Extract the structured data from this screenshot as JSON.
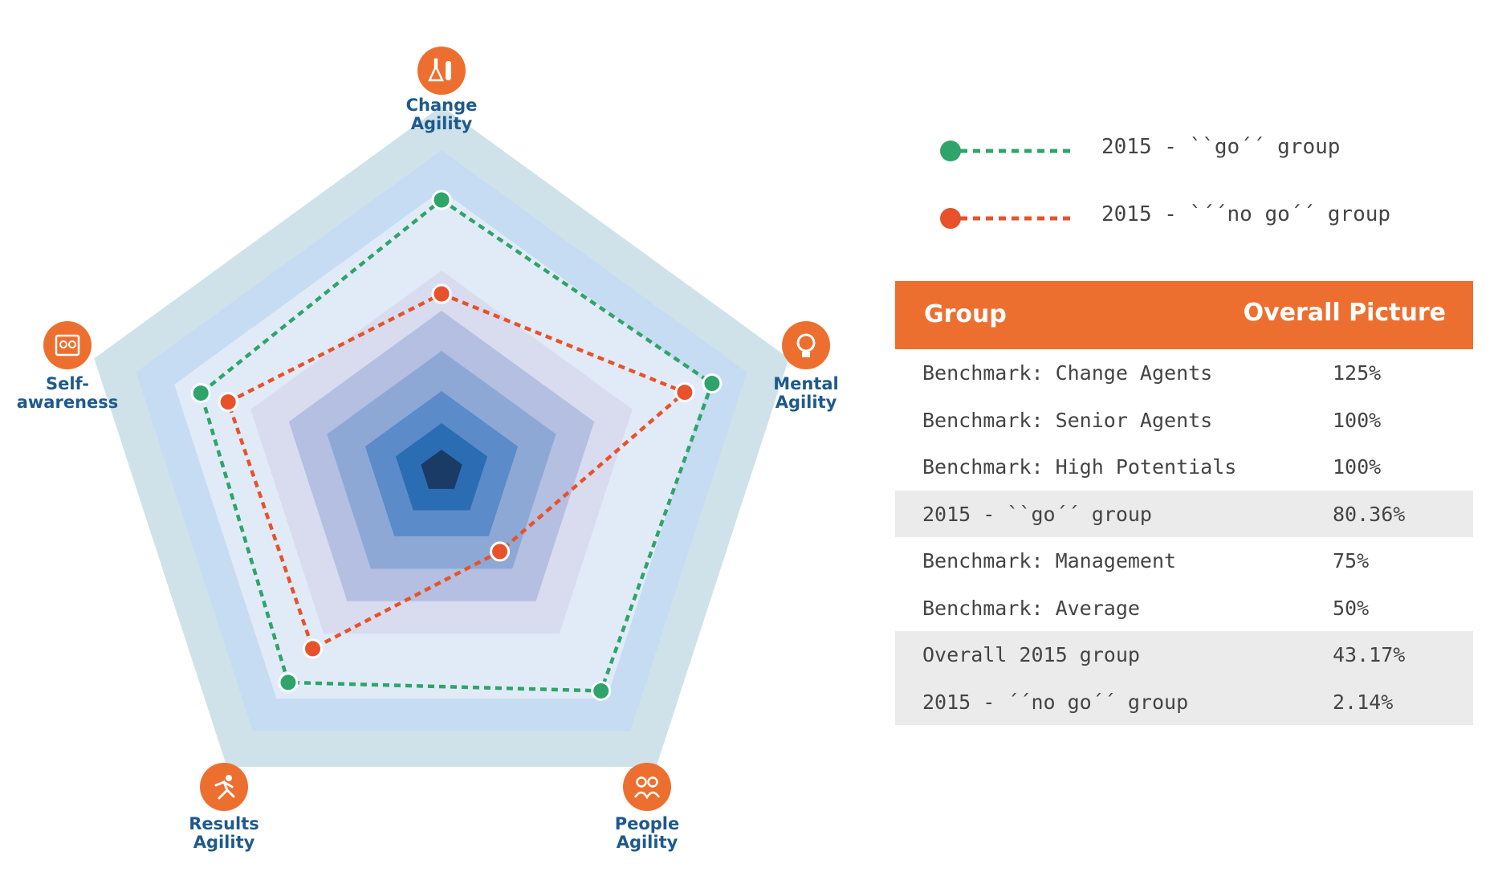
{
  "chart_data": {
    "type": "radar",
    "axes": [
      {
        "label_lines": [
          "Change",
          "Agility"
        ],
        "icon": "flask-icon"
      },
      {
        "label_lines": [
          "Mental",
          "Agility"
        ],
        "icon": "lightbulb-icon"
      },
      {
        "label_lines": [
          "People",
          "Agility"
        ],
        "icon": "people-icon"
      },
      {
        "label_lines": [
          "Results",
          "Agility"
        ],
        "icon": "runner-icon"
      },
      {
        "label_lines": [
          "Self-",
          "awareness"
        ],
        "icon": "mirror-icon"
      }
    ],
    "rings": 7,
    "range": [
      0,
      7
    ],
    "series": [
      {
        "name": "2015 - ``go´´ group",
        "color": "#2fa46a",
        "values": [
          5.2,
          5.45,
          5.2,
          5.0,
          4.85
        ]
      },
      {
        "name": "2015 - `´´no go´´ group",
        "color": "#e8522a",
        "values": [
          3.4,
          4.9,
          1.9,
          4.2,
          4.3
        ]
      }
    ],
    "ring_colors": [
      "#cfe2ea",
      "#c6dcf2",
      "#e1ebf8",
      "#d9dcef",
      "#b4bfe2",
      "#8ea8d6",
      "#5b8bc9",
      "#2b6db3",
      "#1a3b66"
    ]
  },
  "legend": [
    {
      "label": "2015 - ``go´´ group",
      "color": "#2fa46a"
    },
    {
      "label": "2015 - `´´no go´´ group",
      "color": "#e8522a"
    }
  ],
  "table": {
    "header_group": "Group",
    "header_overall": "Overall Picture",
    "rows": [
      {
        "group": "Benchmark: Change Agents",
        "value": "125%",
        "shaded": false
      },
      {
        "group": "Benchmark: Senior Agents",
        "value": "100%",
        "shaded": false
      },
      {
        "group": "Benchmark: High Potentials",
        "value": "100%",
        "shaded": false
      },
      {
        "group": "2015 - ``go´´ group",
        "value": "80.36%",
        "shaded": true
      },
      {
        "group": "Benchmark: Management",
        "value": "75%",
        "shaded": false
      },
      {
        "group": "Benchmark: Average",
        "value": "50%",
        "shaded": false
      },
      {
        "group": "Overall 2015 group",
        "value": "43.17%",
        "shaded": true
      },
      {
        "group": "2015 - ´´no go´´ group",
        "value": "2.14%",
        "shaded": true
      }
    ]
  },
  "colors": {
    "accent_orange": "#ed6f2f",
    "label_blue": "#1e5a8c"
  }
}
